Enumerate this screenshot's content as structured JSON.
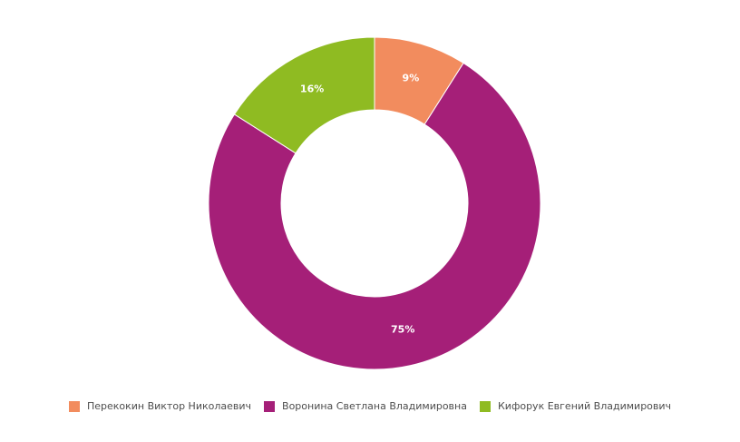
{
  "chart_data": {
    "type": "pie",
    "donut": true,
    "legend_position": "bottom",
    "categories": [
      "Перекокин Виктор Николаевич",
      "Воронина Светлана Владимировна",
      "Кифорук Евгений Владимирович"
    ],
    "values": [
      9,
      75,
      16
    ],
    "labels": [
      "9%",
      "75%",
      "16%"
    ],
    "colors": [
      "#f28c5e",
      "#a51f78",
      "#8fbb22"
    ]
  },
  "legend": {
    "items": [
      {
        "label": "Перекокин Виктор Николаевич",
        "color": "#f28c5e"
      },
      {
        "label": "Воронина Светлана Владимировна",
        "color": "#a51f78"
      },
      {
        "label": "Кифорук Евгений Владимирович",
        "color": "#8fbb22"
      }
    ]
  }
}
